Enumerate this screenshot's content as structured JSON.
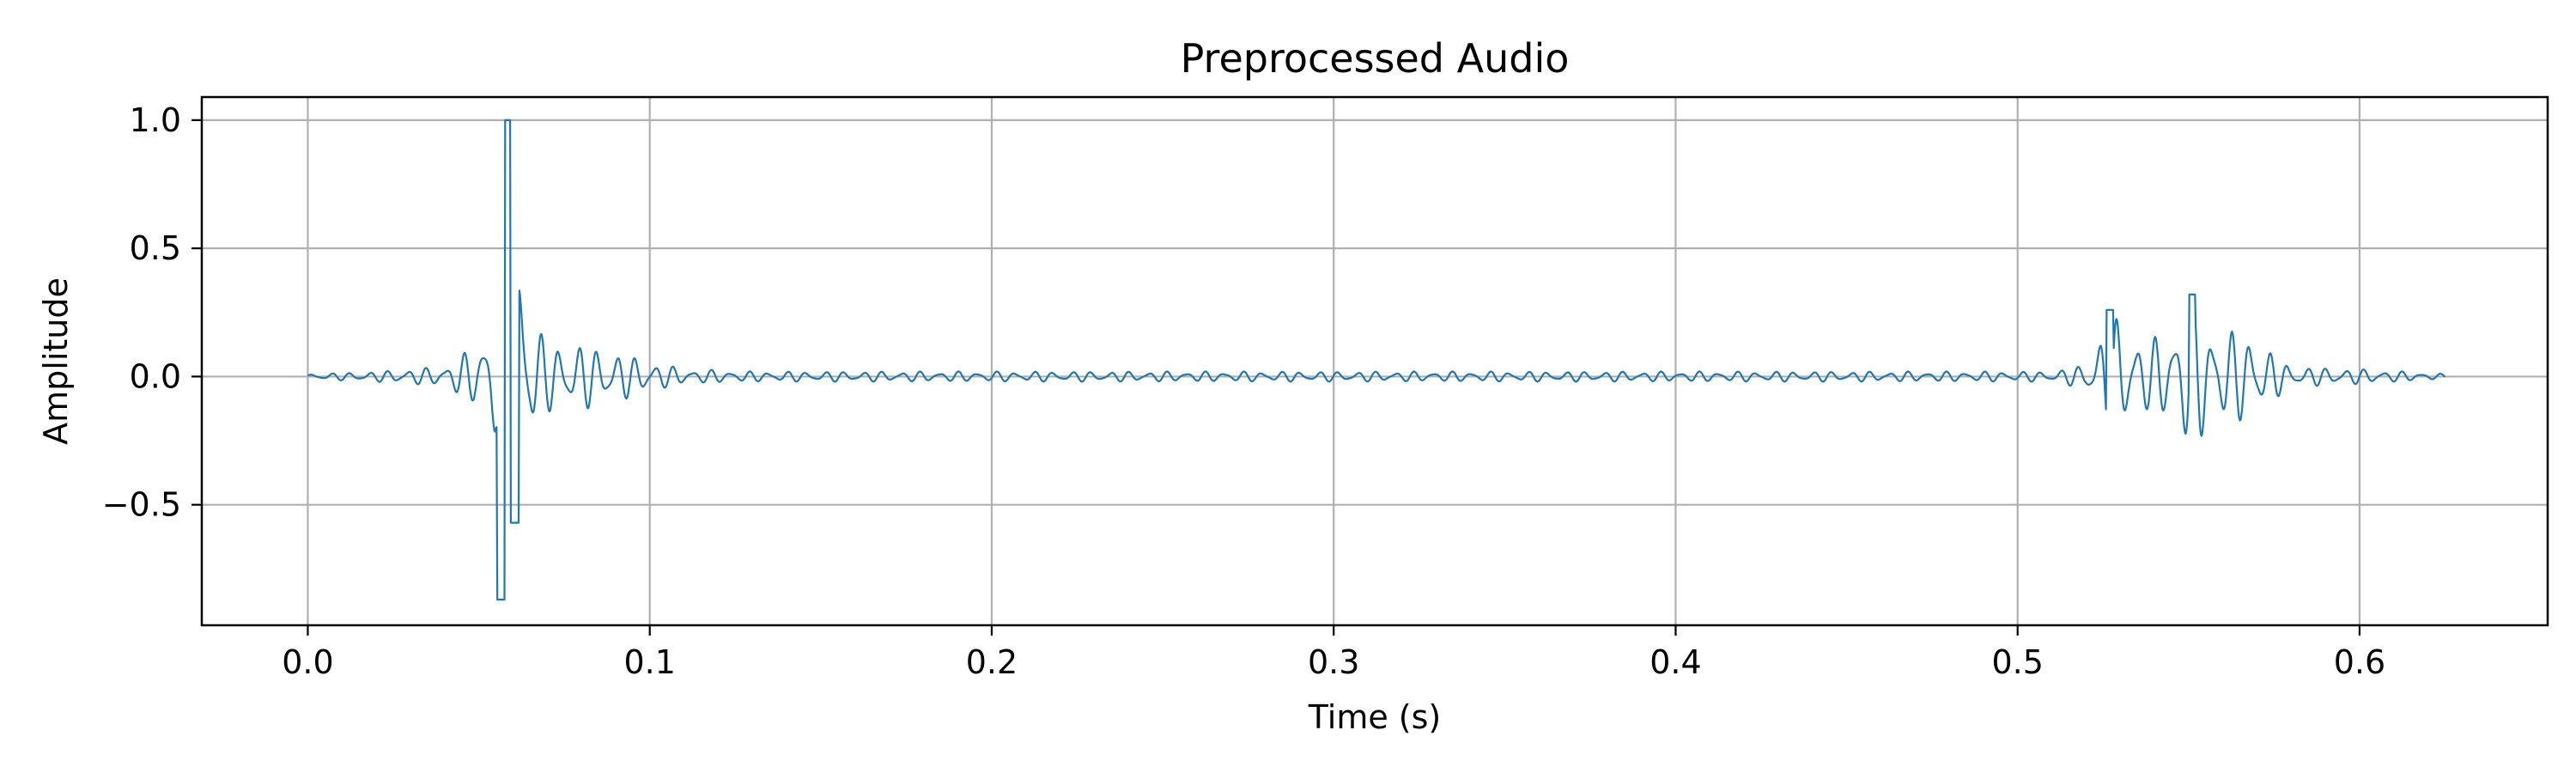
{
  "chart_data": {
    "type": "line",
    "title": "Preprocessed Audio",
    "xlabel": "Time (s)",
    "ylabel": "Amplitude",
    "xlim": [
      -0.031,
      0.655
    ],
    "ylim": [
      -0.97,
      1.09
    ],
    "xticks": [
      0.0,
      0.1,
      0.2,
      0.3,
      0.4,
      0.5,
      0.6
    ],
    "xtick_labels": [
      "0.0",
      "0.1",
      "0.2",
      "0.3",
      "0.4",
      "0.5",
      "0.6"
    ],
    "yticks": [
      -0.5,
      0.0,
      0.5,
      1.0
    ],
    "ytick_labels": [
      "−0.5",
      "0.0",
      "0.5",
      "1.0"
    ],
    "grid": true,
    "line_color": "#1f77b4",
    "series": [
      {
        "x": [
          0.0,
          0.625
        ],
        "waveform_envelope": [
          {
            "t": 0.0,
            "amp": 0.01
          },
          {
            "t": 0.02,
            "amp": 0.02
          },
          {
            "t": 0.04,
            "amp": 0.04
          },
          {
            "t": 0.05,
            "amp": 0.13
          },
          {
            "t": 0.055,
            "amp": 0.3
          },
          {
            "t": 0.058,
            "amp": 1.0
          },
          {
            "t": 0.06,
            "amp": 0.87
          },
          {
            "t": 0.062,
            "amp": 0.57
          },
          {
            "t": 0.065,
            "amp": 0.25
          },
          {
            "t": 0.07,
            "amp": 0.14
          },
          {
            "t": 0.08,
            "amp": 0.13
          },
          {
            "t": 0.09,
            "amp": 0.1
          },
          {
            "t": 0.1,
            "amp": 0.06
          },
          {
            "t": 0.11,
            "amp": 0.03
          },
          {
            "t": 0.13,
            "amp": 0.02
          },
          {
            "t": 0.51,
            "amp": 0.02
          },
          {
            "t": 0.52,
            "amp": 0.05
          },
          {
            "t": 0.527,
            "amp": 0.26
          },
          {
            "t": 0.532,
            "amp": 0.2
          },
          {
            "t": 0.538,
            "amp": 0.14
          },
          {
            "t": 0.545,
            "amp": 0.19
          },
          {
            "t": 0.551,
            "amp": 0.32
          },
          {
            "t": 0.557,
            "amp": 0.2
          },
          {
            "t": 0.563,
            "amp": 0.18
          },
          {
            "t": 0.568,
            "amp": 0.18
          },
          {
            "t": 0.573,
            "amp": 0.11
          },
          {
            "t": 0.58,
            "amp": 0.04
          },
          {
            "t": 0.6,
            "amp": 0.03
          },
          {
            "t": 0.625,
            "amp": 0.01
          }
        ]
      }
    ]
  }
}
